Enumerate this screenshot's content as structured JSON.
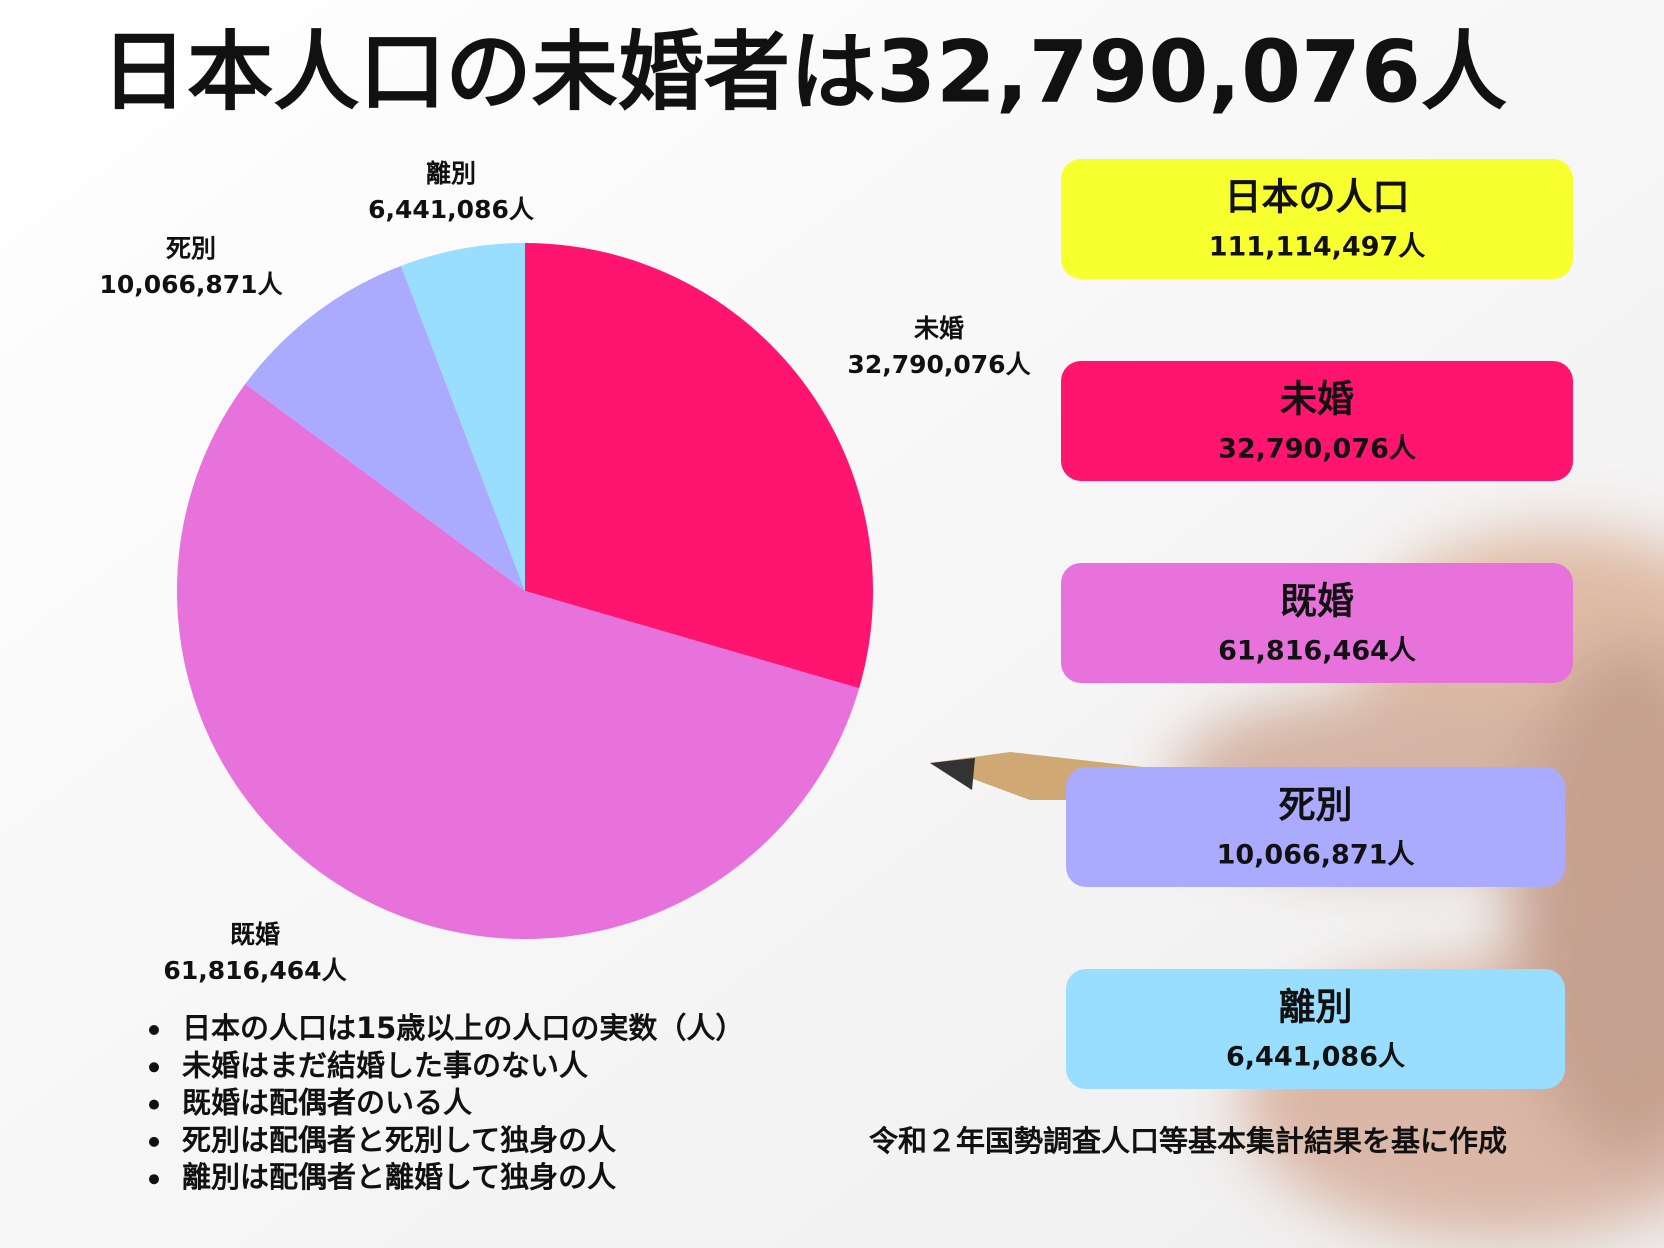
{
  "chart_data": {
    "type": "pie",
    "title": "日本人口の未婚者は32,790,076人",
    "categories": [
      "未婚",
      "既婚",
      "死別",
      "離別"
    ],
    "values": [
      32790076,
      61816464,
      10066871,
      6441086
    ],
    "value_labels": [
      "32,790,076人",
      "61,816,464人",
      "10,066,871人",
      "6,441,086人"
    ],
    "colors": [
      "#ff1470",
      "#e872dc",
      "#aaaaff",
      "#99ddff"
    ]
  },
  "total_card": {
    "label": "日本の人口",
    "text": "111,114,497人"
  },
  "notes": [
    "日本の人口は15歳以上の人口の実数（人）",
    "未婚はまだ結婚した事のない人",
    "既婚は配偶者のいる人",
    "死別は配偶者と死別して独身の人",
    "離別は配偶者と離婚して独身の人"
  ],
  "source": "令和２年国勢調査人口等基本集計結果を基に作成"
}
